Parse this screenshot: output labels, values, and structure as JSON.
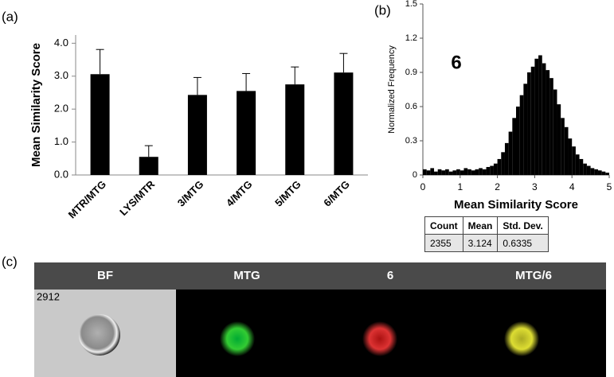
{
  "panel_labels": [
    "(a)",
    "(b)",
    "(c)"
  ],
  "chart_data": [
    {
      "type": "bar",
      "ylabel": "Mean Similarity Score",
      "categories": [
        "MTR/MTG",
        "LYS/MTR",
        "3/MTG",
        "4/MTG",
        "5/MTG",
        "6/MTG"
      ],
      "values": [
        3.06,
        0.55,
        2.43,
        2.55,
        2.75,
        3.11
      ],
      "errors": [
        0.75,
        0.34,
        0.53,
        0.53,
        0.53,
        0.58
      ],
      "color": "#000000",
      "ylim": [
        0,
        4.25
      ],
      "yticks": [
        {
          "value": 0,
          "label": "0.0"
        },
        {
          "value": 1,
          "label": "1.0"
        },
        {
          "value": 2,
          "label": "2.0"
        },
        {
          "value": 3,
          "label": "3.0"
        },
        {
          "value": 4,
          "label": "4.0"
        }
      ]
    },
    {
      "type": "histogram",
      "xlabel": "Mean Similarity Score",
      "ylabel": "Normalized Frequency",
      "annotation": "6",
      "bins": [
        0,
        0.1,
        0.2,
        0.3,
        0.4,
        0.5,
        0.6,
        0.7,
        0.8,
        0.9,
        1,
        1.1,
        1.2,
        1.3,
        1.4,
        1.5,
        1.6,
        1.7,
        1.8,
        1.9,
        2,
        2.1,
        2.2,
        2.3,
        2.4,
        2.5,
        2.6,
        2.7,
        2.8,
        2.9,
        3,
        3.1,
        3.2,
        3.3,
        3.4,
        3.5,
        3.6,
        3.7,
        3.8,
        3.9,
        4,
        4.1,
        4.2,
        4.3,
        4.4,
        4.5,
        4.6,
        4.7,
        4.8,
        4.9,
        5
      ],
      "values": [
        0.05,
        0.04,
        0.06,
        0.03,
        0.05,
        0.04,
        0.05,
        0.03,
        0.04,
        0.05,
        0.04,
        0.06,
        0.05,
        0.04,
        0.05,
        0.06,
        0.05,
        0.07,
        0.08,
        0.1,
        0.14,
        0.2,
        0.28,
        0.38,
        0.5,
        0.6,
        0.7,
        0.8,
        0.9,
        0.95,
        1.02,
        1.05,
        0.98,
        0.92,
        0.85,
        0.75,
        0.62,
        0.5,
        0.42,
        0.32,
        0.25,
        0.18,
        0.14,
        0.1,
        0.08,
        0.06,
        0.05,
        0.04,
        0.03,
        0.02
      ],
      "color": "#000000",
      "xlim": [
        0,
        5
      ],
      "xticks": [
        0,
        1,
        2,
        3,
        4,
        5
      ],
      "ylim": [
        0,
        1.5
      ],
      "yticks": [
        0,
        0.3,
        0.6,
        0.9,
        1.2,
        1.5
      ]
    }
  ],
  "table": {
    "header": [
      "Count",
      "Mean",
      "Std. Dev."
    ],
    "row": [
      2355,
      3.124,
      0.6335
    ]
  },
  "image_strip": {
    "headers": [
      "BF",
      "MTG",
      "6",
      "MTG/6"
    ],
    "object_id": "2912"
  }
}
